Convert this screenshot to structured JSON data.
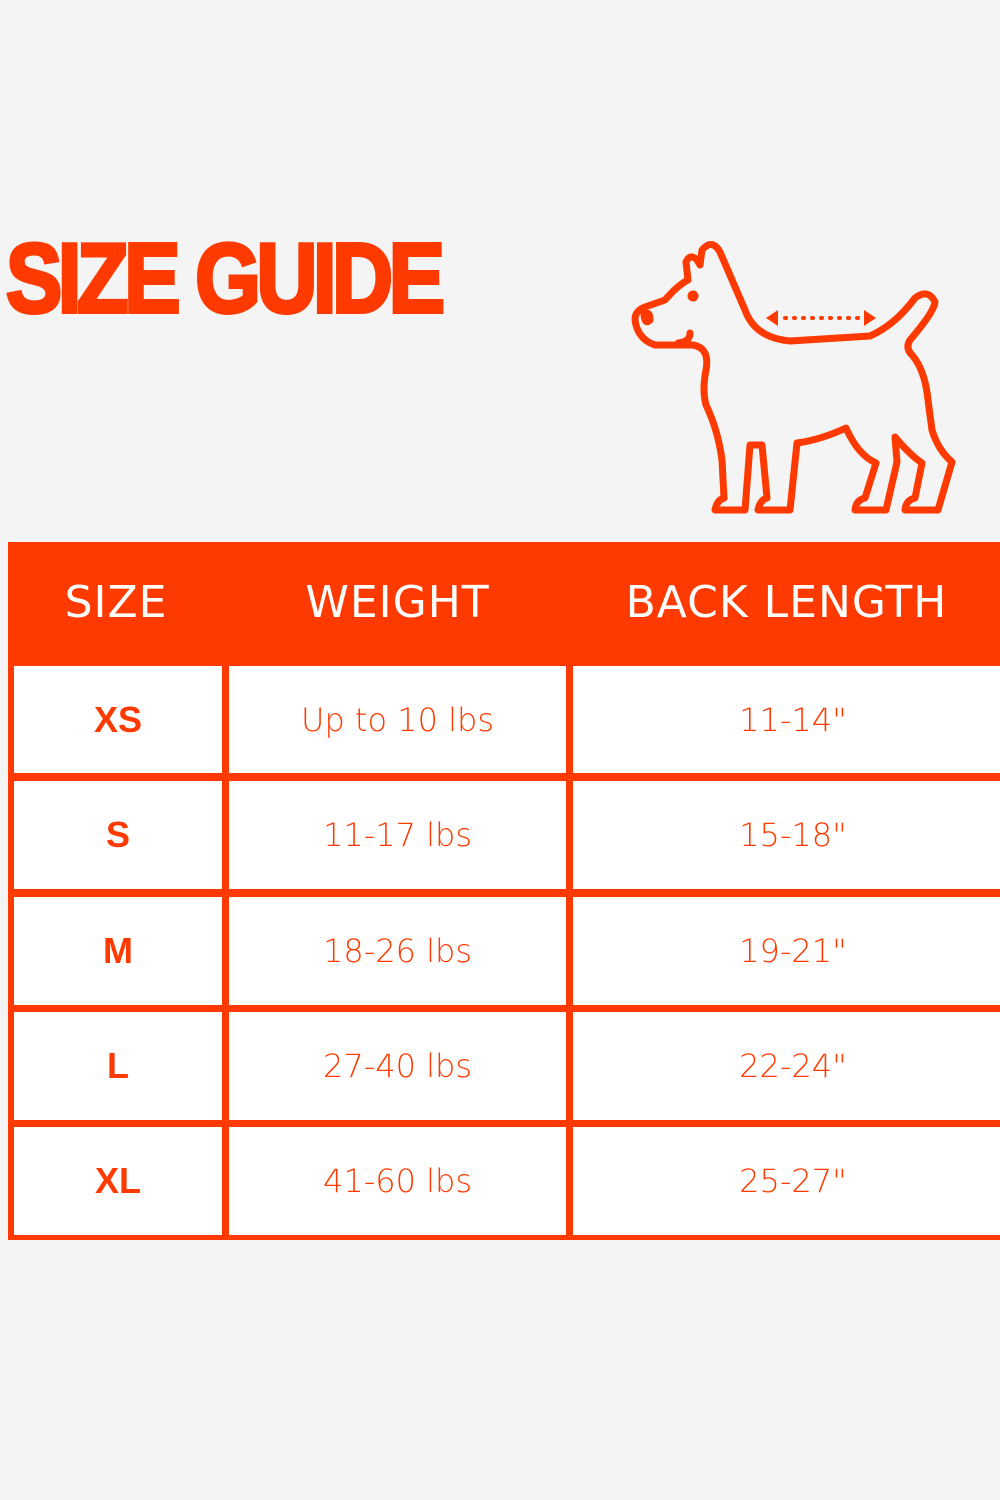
{
  "title": "SIZE GUIDE",
  "accent_color": "#ff3a00",
  "illustration": "dog-back-length-icon",
  "table": {
    "headers": [
      "SIZE",
      "WEIGHT",
      "BACK LENGTH"
    ],
    "rows": [
      {
        "size": "XS",
        "weight": "Up to 10 lbs",
        "back_length": "11-14\""
      },
      {
        "size": "S",
        "weight": "11-17 lbs",
        "back_length": "15-18\""
      },
      {
        "size": "M",
        "weight": "18-26 lbs",
        "back_length": "19-21\""
      },
      {
        "size": "L",
        "weight": "27-40 lbs",
        "back_length": "22-24\""
      },
      {
        "size": "XL",
        "weight": "41-60 lbs",
        "back_length": "25-27\""
      }
    ]
  }
}
